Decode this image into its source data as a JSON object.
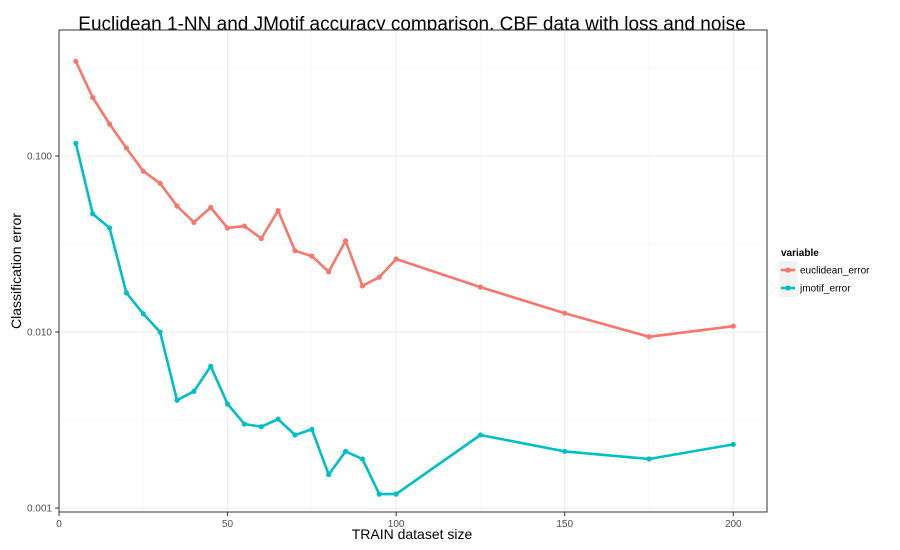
{
  "chart_data": {
    "type": "line",
    "title": "Euclidean 1-NN and JMotif accuracy comparison, CBF data with loss and noise",
    "xlabel": "TRAIN dataset size",
    "ylabel": "Classification error",
    "y_scale": "log10",
    "xlim": [
      0,
      210
    ],
    "ylim": [
      0.00095,
      0.52
    ],
    "x_ticks": [
      0,
      50,
      100,
      150,
      200
    ],
    "x_tick_labels": [
      "0",
      "50",
      "100",
      "150",
      "200"
    ],
    "y_ticks": [
      0.001,
      0.01,
      0.1
    ],
    "y_tick_labels": [
      "0.001",
      "0.010",
      "0.100"
    ],
    "grid": true,
    "legend_title": "variable",
    "legend_position": "right",
    "x": [
      5,
      10,
      15,
      20,
      25,
      30,
      35,
      40,
      45,
      50,
      55,
      60,
      65,
      70,
      75,
      80,
      85,
      90,
      95,
      100,
      125,
      150,
      175,
      200
    ],
    "series": [
      {
        "name": "euclidean_error",
        "color": "#F8766D",
        "values": [
          0.345,
          0.215,
          0.152,
          0.111,
          0.082,
          0.07,
          0.052,
          0.042,
          0.051,
          0.039,
          0.04,
          0.034,
          0.049,
          0.029,
          0.027,
          0.022,
          0.033,
          0.0183,
          0.0205,
          0.026,
          0.018,
          0.0128,
          0.0094,
          0.0108
        ]
      },
      {
        "name": "jmotif_error",
        "color": "#00BFC4",
        "values": [
          0.118,
          0.047,
          0.039,
          0.0167,
          0.0127,
          0.01,
          0.0041,
          0.0046,
          0.0064,
          0.0039,
          0.003,
          0.0029,
          0.0032,
          0.0026,
          0.0028,
          0.00155,
          0.0021,
          0.0019,
          0.0012,
          0.0012,
          0.0026,
          0.0021,
          0.0019,
          0.0023
        ]
      }
    ]
  }
}
